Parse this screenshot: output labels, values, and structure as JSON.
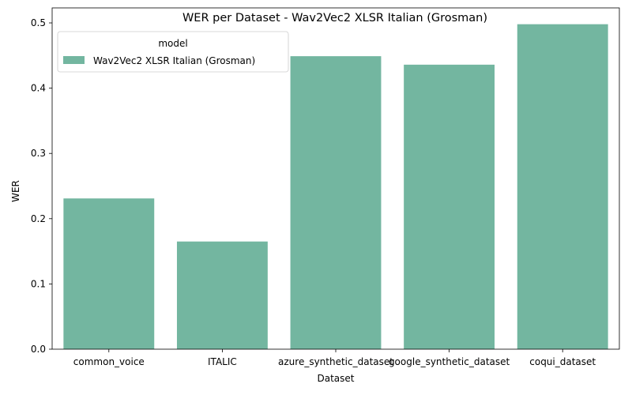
{
  "chart_data": {
    "type": "bar",
    "title": "WER per Dataset - Wav2Vec2 XLSR Italian (Grosman)",
    "xlabel": "Dataset",
    "ylabel": "WER",
    "categories": [
      "common_voice",
      "ITALIC",
      "azure_synthetic_dataset",
      "google_synthetic_dataset",
      "coqui_dataset"
    ],
    "series": [
      {
        "name": "Wav2Vec2 XLSR Italian (Grosman)",
        "values": [
          0.231,
          0.165,
          0.449,
          0.436,
          0.498
        ],
        "color": "#73b6a0"
      }
    ],
    "ylim": [
      0,
      0.523
    ],
    "yticks": [
      0.0,
      0.1,
      0.2,
      0.3,
      0.4,
      0.5
    ],
    "ytick_labels": [
      "0.0",
      "0.1",
      "0.2",
      "0.3",
      "0.4",
      "0.5"
    ],
    "grid": false,
    "legend": {
      "title": "model",
      "placement": "top-left"
    }
  }
}
